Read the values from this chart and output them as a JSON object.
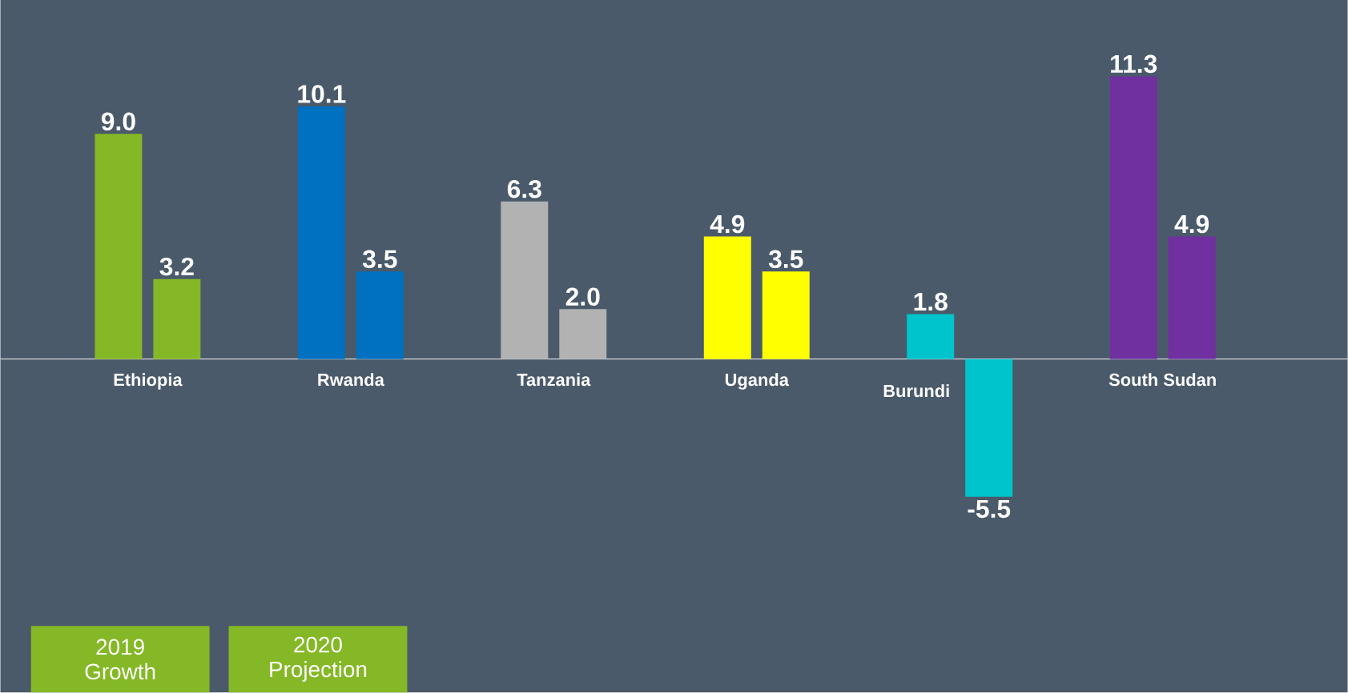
{
  "chart_data": {
    "type": "bar",
    "categories": [
      "Ethiopia",
      "Rwanda",
      "Tanzania",
      "Uganda",
      "Burundi",
      "South Sudan"
    ],
    "series": [
      {
        "name": "2019 Growth",
        "colors": [
          "#84b826",
          "#0070c0",
          "#b2b2b2",
          "#ffff00",
          "#00c4cc",
          "#7030a0"
        ],
        "values": [
          9.0,
          10.1,
          6.3,
          4.9,
          1.8,
          11.3
        ],
        "value_labels": [
          "9.0",
          "10.1",
          "6.3",
          "4.9",
          "1.8",
          "11.3"
        ]
      },
      {
        "name": "2020 Projection",
        "colors": [
          "#84b826",
          "#0070c0",
          "#b2b2b2",
          "#ffff00",
          "#00c4cc",
          "#7030a0"
        ],
        "values": [
          3.2,
          3.5,
          2.0,
          3.5,
          -5.5,
          4.9
        ],
        "value_labels": [
          "3.2",
          "3.5",
          "2.0",
          "3.5",
          "-5.5",
          "4.9"
        ]
      }
    ],
    "legend": "bottom left"
  }
}
